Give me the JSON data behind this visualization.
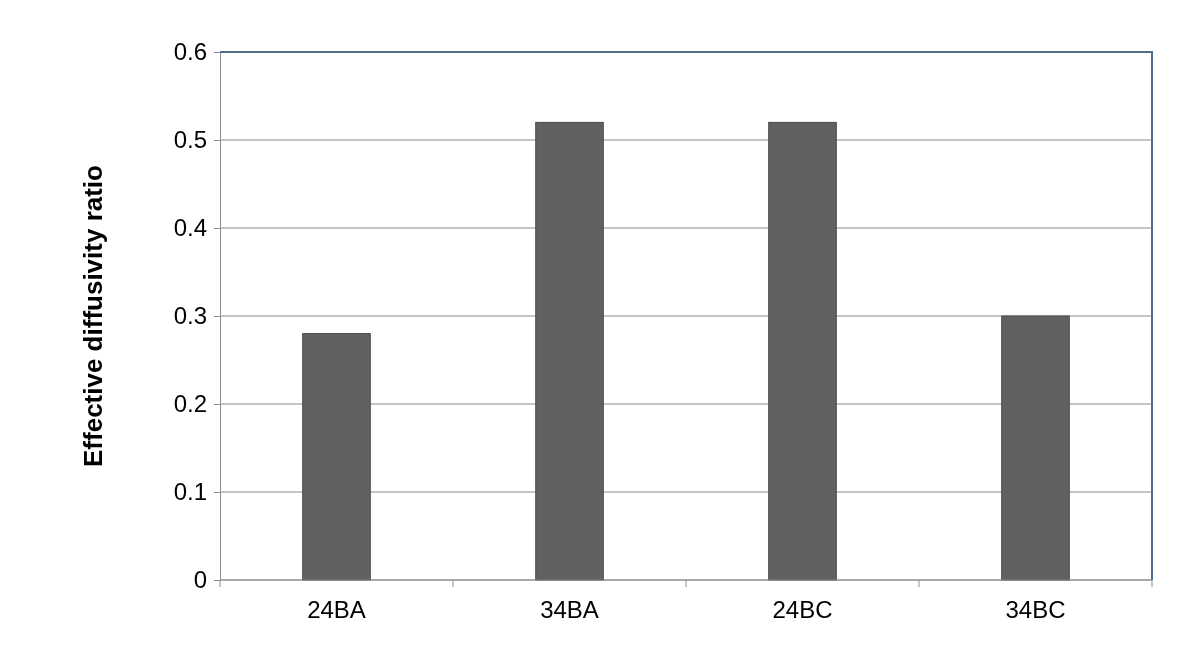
{
  "chart_data": {
    "type": "bar",
    "ylabel": "Effective diffusivity ratio",
    "categories": [
      "24BA",
      "34BA",
      "24BC",
      "34BC"
    ],
    "values": [
      0.28,
      0.52,
      0.52,
      0.3
    ],
    "color": "#616161",
    "ylim": [
      0,
      0.6
    ],
    "yticks": [
      0,
      0.1,
      0.2,
      0.3,
      0.4,
      0.5,
      0.6
    ],
    "grid": "y"
  }
}
